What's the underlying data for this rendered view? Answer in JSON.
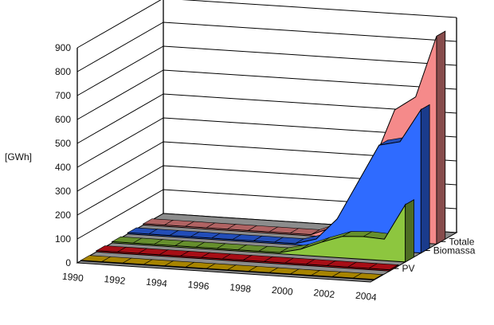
{
  "chart_data": {
    "type": "area",
    "title": "",
    "xlabel": "",
    "ylabel": "[GWh]",
    "ylim": [
      0,
      900
    ],
    "y_ticks": [
      "0",
      "100",
      "200",
      "300",
      "400",
      "500",
      "600",
      "700",
      "800",
      "900"
    ],
    "categories": [
      "1990",
      "1991",
      "1992",
      "1993",
      "1994",
      "1995",
      "1996",
      "1997",
      "1998",
      "1999",
      "2000",
      "2001",
      "2002",
      "2003",
      "2004"
    ],
    "x_tick_labels": [
      "1990",
      "1992",
      "1994",
      "1996",
      "1998",
      "2000",
      "2002",
      "2004"
    ],
    "depth_labels": [
      "PV",
      "Biomassa",
      "Totale"
    ],
    "grid": true,
    "series": [
      {
        "name": "",
        "color": "#E8B800",
        "values": [
          2,
          2,
          2,
          2,
          2,
          2,
          2,
          2,
          2,
          2,
          2,
          2,
          2,
          2,
          2
        ]
      },
      {
        "name": "PV",
        "color": "#E8141E",
        "values": [
          5,
          5,
          5,
          5,
          5,
          5,
          5,
          5,
          5,
          5,
          5,
          5,
          5,
          5,
          5
        ]
      },
      {
        "name": "",
        "color": "#8DC63F",
        "values": [
          5,
          5,
          5,
          5,
          5,
          5,
          5,
          5,
          5,
          25,
          60,
          90,
          95,
          90,
          240
        ]
      },
      {
        "name": "Biomassa",
        "color": "#2F6BFF",
        "values": [
          5,
          5,
          5,
          5,
          5,
          5,
          5,
          5,
          5,
          30,
          120,
          280,
          440,
          460,
          600
        ]
      },
      {
        "name": "Totale",
        "color": "#F58A8A",
        "values": [
          5,
          5,
          5,
          5,
          5,
          5,
          5,
          5,
          5,
          40,
          160,
          330,
          550,
          610,
          870
        ]
      }
    ]
  }
}
